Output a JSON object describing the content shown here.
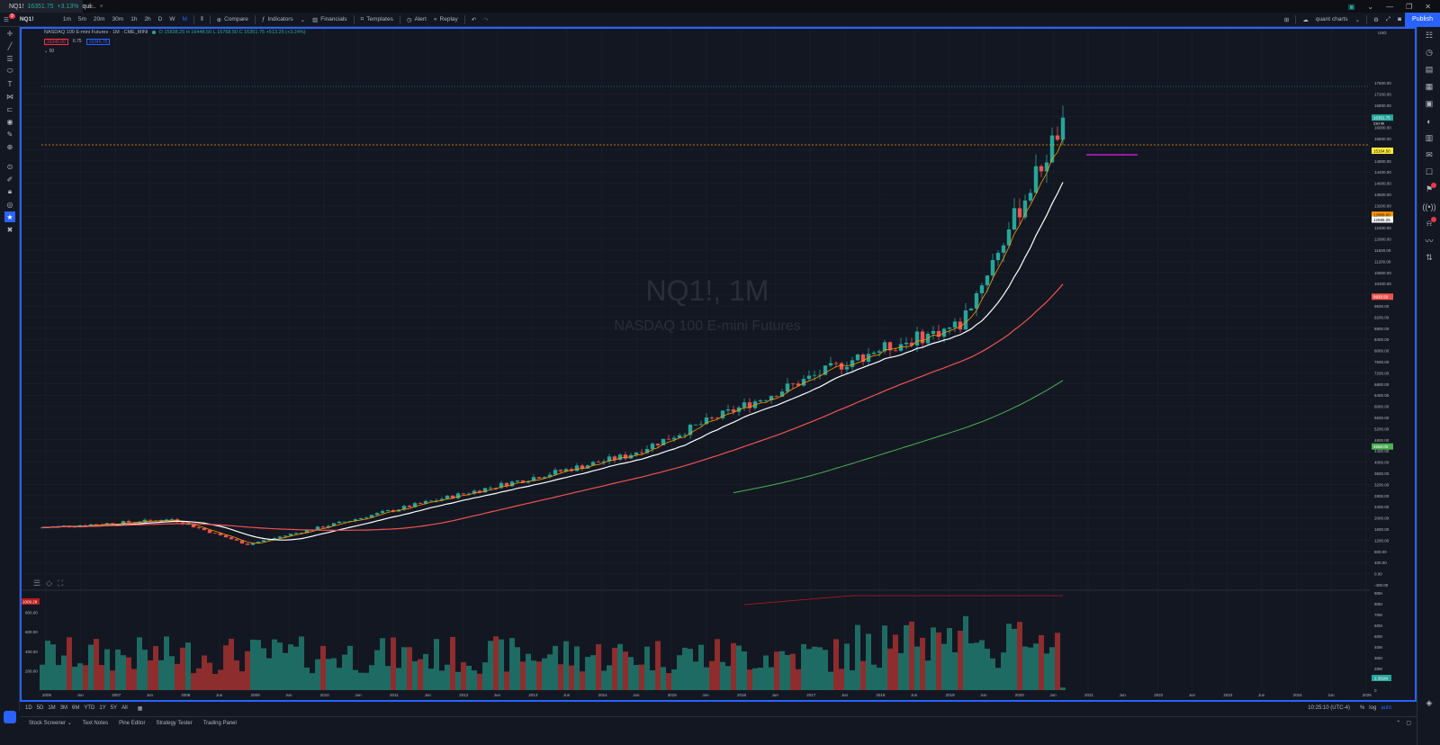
{
  "window": {
    "tab_title": "NQ1!",
    "tab_price": "16351.75",
    "tab_change": "+3.13%",
    "tab_suffix": "qui...",
    "new_tab": "+",
    "controls": [
      "▣",
      "⌄",
      "—",
      "❐",
      "✕"
    ]
  },
  "toolbar": {
    "menu_badge": "9",
    "symbol": "NQ1!",
    "intervals": [
      "1m",
      "5m",
      "20m",
      "30m",
      "1h",
      "2h",
      "D",
      "W",
      "M"
    ],
    "active_interval": "M",
    "compare": "Compare",
    "indicators": "Indicators",
    "financials": "Financials",
    "templates": "Templates",
    "alert": "Alert",
    "replay": "Replay",
    "layout_name": "quant charts",
    "publish": "Publish"
  },
  "legend": {
    "title": "NASDAQ 100 E-mini Futures · 1M · CME_MINI",
    "ohlc": "O 15838.25 H 16448.50 L 15768.50 C 16351.75 +513.25 (+3.24%)",
    "chip_bid": "16340.00",
    "chip_spread": "6.75",
    "chip_ask": "16346.75",
    "volume_label": "50"
  },
  "watermark": {
    "symbol": "NQ1!, 1M",
    "name": "NASDAQ 100 E-mini Futures"
  },
  "price_axis": {
    "currency": "USD",
    "ticks": [
      "17600.00",
      "17200.00",
      "16800.00",
      "16400.00",
      "16000.00",
      "15600.00",
      "15200.00",
      "14800.00",
      "14400.00",
      "14000.00",
      "13600.00",
      "13200.00",
      "12800.00",
      "12400.00",
      "12000.00",
      "11600.00",
      "11200.00",
      "10800.00",
      "10400.00",
      "10000.00",
      "9600.00",
      "9200.00",
      "8800.00",
      "8400.00",
      "8000.00",
      "7600.00",
      "7200.00",
      "6800.00",
      "6400.00",
      "6000.00",
      "5600.00",
      "5200.00",
      "4800.00",
      "4400.00",
      "4000.00",
      "3600.00",
      "3200.00",
      "2800.00",
      "2400.00",
      "2000.00",
      "1600.00",
      "1200.00",
      "800.00",
      "400.00",
      "0.00",
      "-400.00"
    ],
    "last_price_label": "16351.75",
    "last_price_sub": "23d 9h",
    "ma_short_label": "15164.50",
    "ma_mid1_label": "12869.00",
    "ma_mid2_label": "12696.25",
    "ma_long_label": "9930.50",
    "ma_longest_label": "4560.00"
  },
  "volume_axis": {
    "ticks": [
      "90M",
      "80M",
      "70M",
      "60M",
      "50M",
      "40M",
      "30M",
      "20M",
      "10M",
      "0"
    ],
    "last_label": "2.391M",
    "left_ticks": [
      "800.00",
      "600.00",
      "400.00",
      "200.00"
    ],
    "left_badge": "1009.28"
  },
  "time_axis": {
    "labels": [
      "2006",
      "Jun",
      "2007",
      "Jun",
      "2008",
      "Jun",
      "2009",
      "Jun",
      "2010",
      "Jun",
      "2011",
      "Jun",
      "2012",
      "Jun",
      "2013",
      "Jun",
      "2014",
      "Jun",
      "2015",
      "Jun",
      "2016",
      "Jun",
      "2017",
      "Jun",
      "2018",
      "Jun",
      "2019",
      "Jun",
      "2020",
      "Jun",
      "2021",
      "Jun",
      "2022",
      "Jun",
      "2023",
      "Jun",
      "2024",
      "Jun",
      "2025"
    ]
  },
  "bottom": {
    "ranges": [
      "1D",
      "5D",
      "1M",
      "3M",
      "6M",
      "YTD",
      "1Y",
      "5Y",
      "All"
    ],
    "time": "10:25:10 (UTC-4)",
    "pct": "%",
    "log": "log",
    "auto": "auto",
    "panels": [
      "Stock Screener",
      "Text Notes",
      "Pine Editor",
      "Strategy Tester",
      "Trading Panel"
    ]
  },
  "colors": {
    "up": "#26a69a",
    "down": "#ef5350",
    "accent": "#2962ff",
    "ma_short": "#ff9800",
    "ma_mid": "#ffffff",
    "ma_long": "#ef5350",
    "ma_longest": "#4caf50",
    "level": "#ff9800",
    "hline": "#e91ee8"
  }
}
